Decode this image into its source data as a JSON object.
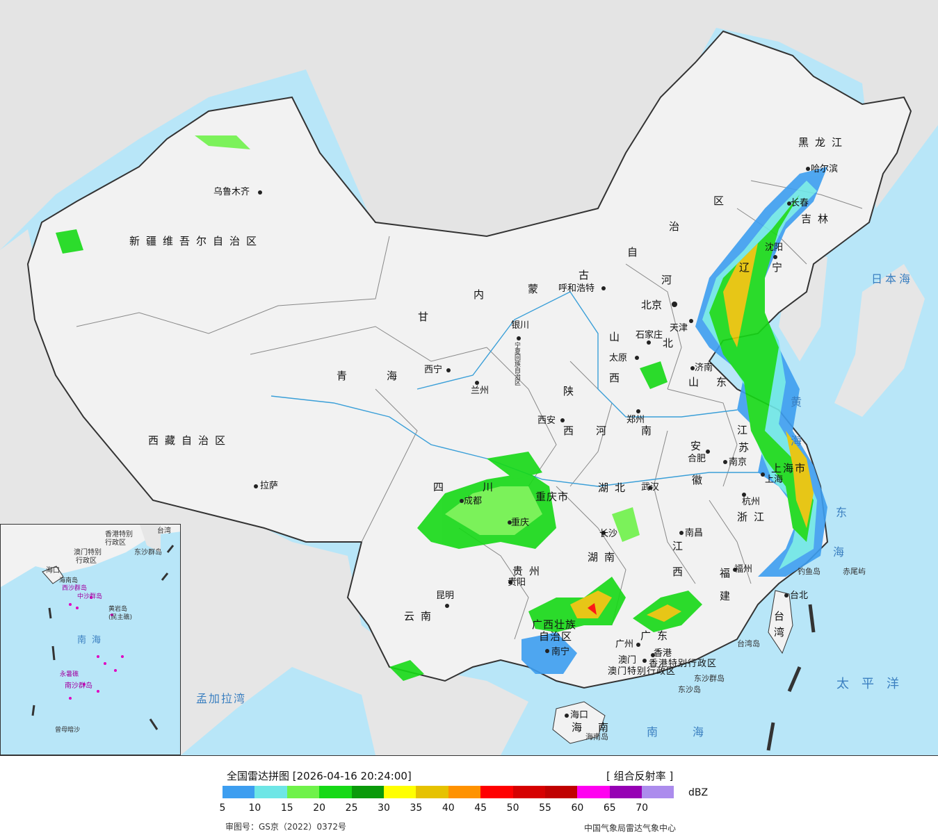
{
  "legend": {
    "title": "全国雷达拼图 [2026-04-16 20:24:00]",
    "product": "[ 组合反射率 ]",
    "unit": "dBZ",
    "colors": [
      "#3d9ef0",
      "#6ee6e6",
      "#6ff24a",
      "#16d916",
      "#0a9a0a",
      "#ffff00",
      "#e6c200",
      "#ff9200",
      "#ff0000",
      "#d60000",
      "#c00000",
      "#ff00f0",
      "#9600b4",
      "#ac8ced"
    ],
    "ticks": [
      "5",
      "10",
      "15",
      "20",
      "25",
      "30",
      "35",
      "40",
      "45",
      "50",
      "55",
      "60",
      "65",
      "70"
    ],
    "approval": "审图号：GS京（2022）0372号",
    "agency": "中国气象局雷达气象中心"
  },
  "colors": {
    "sea": "#b8e6f8",
    "land": "#f2f2f2",
    "neighbor": "#e6e6e6"
  },
  "provinces": {
    "xinjiang": "新疆维吾尔自治区",
    "xizang": "西藏自治区",
    "qinghai_1": "青",
    "qinghai_2": "海",
    "gansu": "甘",
    "neimenggu_1": "内",
    "neimenggu_2": "蒙",
    "neimenggu_3": "古",
    "neimenggu_4": "自",
    "neimenggu_5": "治",
    "neimenggu_6": "区",
    "heilongjiang": "黑龙江",
    "jilin": "吉林",
    "liaoning_1": "辽",
    "liaoning_2": "宁",
    "hebei_1": "河",
    "hebei_2": "北",
    "shanxi_1": "山",
    "shanxi_2": "西",
    "shaanxi_1": "陕",
    "shaanxi_2": "西",
    "shandong_1": "山",
    "shandong_2": "东",
    "henan_1": "河",
    "henan_2": "南",
    "jiangsu_1": "江",
    "jiangsu_2": "苏",
    "anhui_1": "安",
    "anhui_2": "徽",
    "shanghai": "上海市",
    "zhejiang": "浙江",
    "hubei": "湖北",
    "sichuan_1": "四",
    "sichuan_2": "川",
    "chongqing": "重庆市",
    "guizhou": "贵州",
    "hunan": "湖南",
    "jiangxi_1": "江",
    "jiangxi_2": "西",
    "fujian_1": "福",
    "fujian_2": "建",
    "yunnan": "云南",
    "guangxi_1": "广西壮族",
    "guangxi_2": "自治区",
    "guangdong": "广东",
    "hainan_1": "海",
    "hainan_2": "南",
    "taiwan_1": "台",
    "taiwan_2": "湾",
    "ningxia": "宁夏回族自治区",
    "hk": "香港特别行政区",
    "macau": "澳门特别行政区"
  },
  "cities": {
    "urumqi": "乌鲁木齐",
    "lhasa": "拉萨",
    "xining": "西宁",
    "lanzhou": "兰州",
    "yinchuan": "银川",
    "hohhot": "呼和浩特",
    "beijing": "北京",
    "tianjin": "天津",
    "shijiazhuang": "石家庄",
    "taiyuan": "太原",
    "jinan": "济南",
    "xian": "西安",
    "zhengzhou": "郑州",
    "hefei": "合肥",
    "nanjing": "南京",
    "shanghai": "上海",
    "hangzhou": "杭州",
    "wuhan": "武汉",
    "chengdu": "成都",
    "chongqing": "重庆",
    "guiyang": "贵阳",
    "changsha": "长沙",
    "nanchang": "南昌",
    "fuzhou": "福州",
    "kunming": "昆明",
    "nanning": "南宁",
    "guangzhou": "广州",
    "hongkong": "香港",
    "macao": "澳门",
    "haikou": "海口",
    "taibei": "台北",
    "harbin": "哈尔滨",
    "changchun": "长春",
    "shenyang": "沈阳",
    "taiwan_island": "台湾岛",
    "hainan_island": "海南岛",
    "diaoyu": "钓鱼岛",
    "chiwei": "赤尾屿",
    "dongsha_islands": "东沙群岛",
    "dongsha_island": "东沙岛"
  },
  "seas": {
    "sea_of_japan": "日本海",
    "east_sea_1": "东",
    "east_sea_2": "海",
    "yellow_sea": "黄海",
    "pacific": "太平洋",
    "south_sea": "南海",
    "bay_of_bengal": "孟加拉湾",
    "inset_south_sea": "南海"
  },
  "inset": {
    "zhongsha": "中沙群岛",
    "xisha": "西沙群岛",
    "nansha": "南沙群岛",
    "huangyan": "黄岩岛",
    "minzhu": "(民主礁)",
    "yongshu": "永暑礁",
    "zengmu": "曾母暗沙",
    "hk": "香港特别",
    "hk2": "行政区",
    "macau": "澳门特别",
    "macau2": "行政区",
    "haikou": "海口",
    "hainan": "海南岛",
    "taiwan": "台湾",
    "dongsha": "东沙群岛"
  }
}
